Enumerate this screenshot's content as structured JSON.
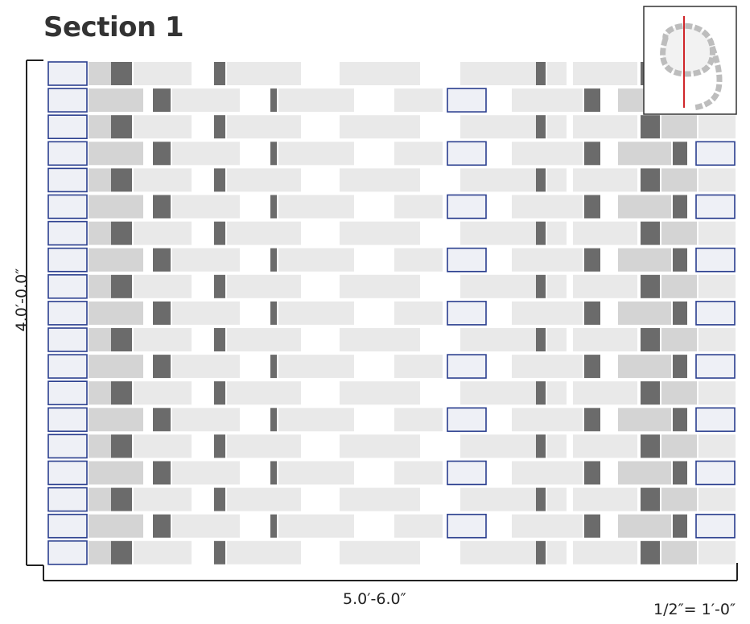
{
  "title": "Section 1",
  "dimensions": {
    "width_label": "5.0′-6.0″",
    "height_label": "4.0′-0.0″"
  },
  "scale_label": "1/2″= 1′-0″",
  "inset_key_plan": {
    "icon": "section-cut-key-plan",
    "cut_line_color": "#d0262a"
  },
  "colors": {
    "block_light": "#e9e9e9",
    "block_mid": "#d4d4d4",
    "block_dark": "#6b6b6b",
    "highlight_outline": "#2b3f8f",
    "dimension_line": "#222222"
  }
}
